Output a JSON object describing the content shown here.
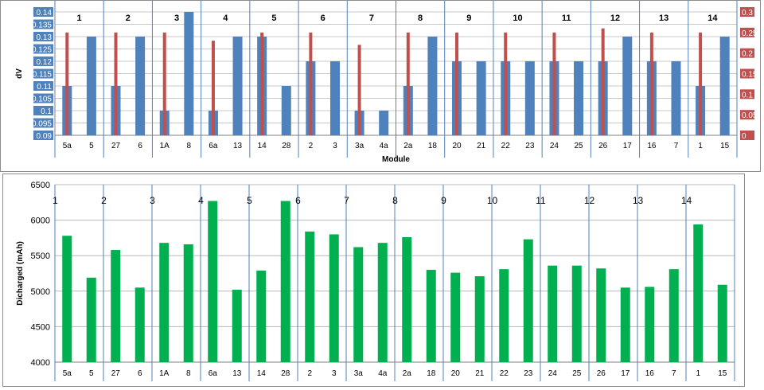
{
  "chart_data": [
    {
      "type": "bar",
      "categories": [
        "5a",
        "5",
        "27",
        "6",
        "1A",
        "8",
        "6a",
        "13",
        "14",
        "28",
        "2",
        "3",
        "3a",
        "4a",
        "2a",
        "18",
        "20",
        "21",
        "22",
        "23",
        "24",
        "25",
        "26",
        "17",
        "16",
        "7",
        "1",
        "15"
      ],
      "groups": [
        "1",
        "2",
        "3",
        "4",
        "5",
        "6",
        "7",
        "8",
        "9",
        "10",
        "11",
        "12",
        "13",
        "14"
      ],
      "xlabel": "Module",
      "ylabel": "dV",
      "ylim": [
        0.09,
        0.14
      ],
      "y2lim": [
        0,
        0.3
      ],
      "yticks": [
        "0.09",
        "0.095",
        "0.1",
        "0.105",
        "0.11",
        "0.115",
        "0.12",
        "0.125",
        "0.13",
        "0.135",
        "0.14"
      ],
      "y2ticks": [
        "0",
        "0.05",
        "0.1",
        "0.15",
        "0.2",
        "0.25",
        "0.3"
      ],
      "grid": true,
      "series": [
        {
          "axis": "left",
          "color": "#4f81bd",
          "values": [
            0.11,
            0.13,
            0.11,
            0.13,
            0.1,
            0.14,
            0.1,
            0.13,
            0.13,
            0.11,
            0.12,
            0.12,
            0.1,
            0.1,
            0.11,
            0.13,
            0.12,
            0.12,
            0.12,
            0.12,
            0.12,
            0.12,
            0.12,
            0.13,
            0.12,
            0.12,
            0.11,
            0.13
          ]
        },
        {
          "axis": "right",
          "color": "#c0504d",
          "values": [
            0.25,
            null,
            0.25,
            null,
            0.25,
            null,
            0.23,
            null,
            0.25,
            null,
            0.25,
            null,
            0.22,
            null,
            0.25,
            null,
            0.25,
            null,
            0.25,
            null,
            0.25,
            null,
            0.26,
            null,
            0.25,
            null,
            0.25,
            null
          ]
        }
      ]
    },
    {
      "type": "bar",
      "categories": [
        "5a",
        "5",
        "27",
        "6",
        "1A",
        "8",
        "6a",
        "13",
        "14",
        "28",
        "2",
        "3",
        "3a",
        "4a",
        "2a",
        "18",
        "20",
        "21",
        "22",
        "23",
        "24",
        "25",
        "26",
        "17",
        "16",
        "7",
        "1",
        "15"
      ],
      "groups": [
        "1",
        "2",
        "3",
        "4",
        "5",
        "6",
        "7",
        "8",
        "9",
        "10",
        "11",
        "12",
        "13",
        "14"
      ],
      "xlabel": "",
      "ylabel": "Dicharged (mAh)",
      "ylim": [
        4000,
        6500
      ],
      "yticks": [
        "4000",
        "4500",
        "5000",
        "5500",
        "6000",
        "6500"
      ],
      "grid": true,
      "series": [
        {
          "color": "#00b050",
          "values": [
            5780,
            5190,
            5580,
            5050,
            5680,
            5660,
            6270,
            5020,
            5290,
            6270,
            5840,
            5800,
            5620,
            5680,
            5760,
            5300,
            5260,
            5210,
            5310,
            5730,
            5360,
            5360,
            5320,
            5050,
            5060,
            5310,
            5940,
            5090
          ]
        }
      ]
    }
  ]
}
